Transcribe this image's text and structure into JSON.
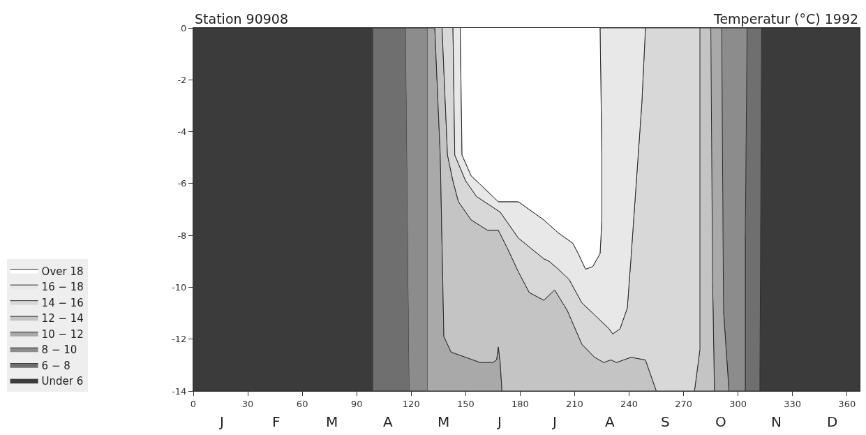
{
  "chart_data": {
    "type": "area",
    "title": "Station 90908",
    "subtitle": "Temperatur (°C) 1992",
    "annotations": [
      "J",
      "F",
      "M",
      "A",
      "M",
      "J",
      "J",
      "A",
      "S",
      "O",
      "N",
      "D"
    ],
    "xlim": [
      0,
      367
    ],
    "xticks": [
      0,
      30,
      60,
      90,
      120,
      150,
      180,
      210,
      240,
      270,
      300,
      330,
      360
    ],
    "ylim": [
      -14,
      0
    ],
    "yticks": [
      0,
      -2,
      -4,
      -6,
      -8,
      -10,
      -12,
      -14
    ],
    "legend": "left",
    "series": [
      {
        "name": "Under 6",
        "color": "#3b3b3b",
        "x": [
          0,
          99,
          99,
          0,
          null,
          313,
          367,
          367,
          312
        ],
        "values": [
          0,
          0,
          -14,
          -14,
          null,
          0,
          0,
          -14,
          -14
        ]
      },
      {
        "name": "6 − 8",
        "color": "#6f6f6f",
        "x": [
          99,
          117,
          119,
          99,
          null,
          305,
          313,
          312,
          304,
          304
        ],
        "values": [
          0,
          0,
          -14,
          -14,
          null,
          0,
          0,
          -14,
          -14,
          -8
        ]
      },
      {
        "name": "8 − 10",
        "color": "#8c8c8c",
        "x": [
          117,
          129,
          129,
          119,
          null,
          291,
          305,
          304,
          304,
          295,
          292
        ],
        "values": [
          0,
          0,
          -14,
          -14,
          null,
          0,
          0,
          -8,
          -14,
          -14,
          -10.9
        ]
      },
      {
        "name": "10 − 12",
        "color": "#a9a9a9",
        "x": [
          129,
          133,
          136,
          138,
          142,
          150,
          158,
          165,
          167,
          168,
          169,
          170,
          129,
          null,
          285,
          291,
          292,
          295,
          287,
          286
        ],
        "values": [
          0,
          0,
          -4.9,
          -11.9,
          -12.5,
          -12.7,
          -12.9,
          -12.9,
          -12.8,
          -12.3,
          -12.9,
          -14,
          -14,
          null,
          0,
          0,
          -10.9,
          -14,
          -14,
          -9.9
        ]
      },
      {
        "name": "12 − 14",
        "color": "#c4c4c4",
        "x": [
          133,
          136,
          138,
          142,
          150,
          158,
          165,
          167,
          168,
          169,
          170,
          255,
          251,
          249,
          241,
          233,
          230,
          226,
          221,
          214,
          206,
          199,
          193,
          185,
          179,
          173,
          168,
          162,
          153,
          146,
          143,
          140,
          137,
          null,
          279,
          285,
          286,
          287,
          276,
          279
        ],
        "values": [
          0,
          -4.9,
          -11.9,
          -12.5,
          -12.7,
          -12.9,
          -12.9,
          -12.8,
          -12.3,
          -12.9,
          -14,
          -14,
          -13.2,
          -12.8,
          -12.7,
          -12.9,
          -12.8,
          -12.9,
          -12.7,
          -12.2,
          -10.9,
          -10.1,
          -10.5,
          -10.2,
          -9.4,
          -8.5,
          -7.8,
          -7.8,
          -7.4,
          -6.7,
          -5.9,
          -4.9,
          0,
          null,
          0,
          0,
          -9.9,
          -14,
          -14,
          -12.4
        ]
      },
      {
        "name": "14 − 16",
        "color": "#d8d8d8",
        "x": [
          137,
          140,
          143,
          146,
          153,
          162,
          168,
          173,
          179,
          185,
          193,
          199,
          206,
          214,
          221,
          226,
          230,
          233,
          241,
          249,
          251,
          255,
          276,
          279,
          279,
          249,
          247,
          244,
          241,
          239,
          235,
          231,
          229,
          223,
          214,
          207,
          201,
          196,
          193,
          179,
          169,
          156,
          150,
          144,
          143
        ],
        "values": [
          0,
          -4.9,
          -5.9,
          -6.7,
          -7.4,
          -7.8,
          -7.8,
          -8.5,
          -9.4,
          -10.2,
          -10.5,
          -10.1,
          -10.9,
          -12.2,
          -12.7,
          -12.9,
          -12.8,
          -12.9,
          -12.7,
          -12.8,
          -13.2,
          -14,
          -14,
          -12.4,
          0,
          0,
          -2.9,
          -5.9,
          -8.9,
          -10.8,
          -11.6,
          -11.8,
          -11.6,
          -11.2,
          -10.6,
          -9.7,
          -9.3,
          -9,
          -8.9,
          -8.1,
          -7.1,
          -6.5,
          -5.9,
          -4.9,
          0
        ]
      },
      {
        "name": "16 − 18",
        "color": "#e8e8e8",
        "x": [
          143,
          144,
          150,
          156,
          169,
          179,
          193,
          196,
          201,
          207,
          214,
          223,
          229,
          231,
          235,
          239,
          241,
          244,
          247,
          249,
          224,
          225,
          225,
          224,
          220,
          216,
          212,
          209,
          201,
          193,
          179,
          168,
          153,
          148,
          147
        ],
        "values": [
          0,
          -4.9,
          -5.9,
          -6.5,
          -7.1,
          -8.1,
          -8.9,
          -9,
          -9.3,
          -9.7,
          -10.6,
          -11.2,
          -11.6,
          -11.8,
          -11.6,
          -10.8,
          -8.9,
          -5.9,
          -2.9,
          0,
          0,
          -4.9,
          -7.4,
          -8.7,
          -9.2,
          -9.3,
          -8.7,
          -8.3,
          -7.9,
          -7.4,
          -6.7,
          -6.7,
          -5.7,
          -4.9,
          0
        ]
      },
      {
        "name": "Over 18",
        "color": "#ffffff",
        "x": [
          147,
          148,
          153,
          168,
          179,
          193,
          201,
          209,
          212,
          216,
          220,
          224,
          225,
          225,
          224
        ],
        "values": [
          0,
          -4.9,
          -5.7,
          -6.7,
          -6.7,
          -7.4,
          -7.9,
          -8.3,
          -8.7,
          -9.3,
          -9.2,
          -8.7,
          -7.4,
          -4.9,
          0
        ]
      }
    ]
  }
}
